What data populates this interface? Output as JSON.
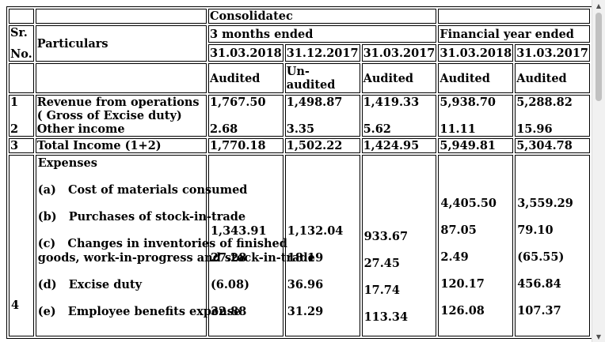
{
  "header": {
    "consolidated": "Consolidatec",
    "sr": "Sr.",
    "no": "No.",
    "particulars": "Particulars",
    "three_months": "3 months ended",
    "financial_year": "Financial year ended",
    "dates": [
      "31.03.2018",
      "31.12.2017",
      "31.03.2017",
      "31.03.2018",
      "31.03.2017"
    ],
    "status": [
      "Audited",
      "Un-audited",
      "Audited",
      "Audited",
      "Audited"
    ]
  },
  "rows": {
    "r1": {
      "sr": "1",
      "label": "Revenue from operations ( Gross of Excise duty)",
      "values": [
        "1,767.50",
        "1,498.87",
        "1,419.33",
        "5,938.70",
        "5,288.82"
      ]
    },
    "r2": {
      "sr": "2",
      "label": "Other income",
      "values": [
        "2.68",
        "3.35",
        "5.62",
        "11.11",
        "15.96"
      ]
    },
    "r3": {
      "sr": "3",
      "label": "Total Income (1+2)",
      "values": [
        "1,770.18",
        "1,502.22",
        "1,424.95",
        "5,949.81",
        "5,304.78"
      ]
    }
  },
  "expenses": {
    "sr": "4",
    "heading": "Expenses",
    "items": [
      "(a)   Cost of materials consumed",
      "(b)   Purchases of stock-in-trade",
      "(c)   Changes in inventories of finished",
      "goods, work-in-progress and stock-in-trade",
      "(d)   Excise duty",
      "(e)   Employee benefits expense"
    ],
    "col1": [
      "1,343.91",
      "27.28",
      "(6.08)",
      "32.88"
    ],
    "col2": [
      "1,132.04",
      "18.19",
      "36.96",
      "31.29"
    ],
    "col3": [
      "933.67",
      "27.45",
      "17.74",
      "113.34"
    ],
    "col4": [
      "4,405.50",
      "87.05",
      "2.49",
      "120.17",
      "126.08"
    ],
    "col5": [
      "3,559.29",
      "79.10",
      "(65.55)",
      "456.84",
      "107.37"
    ]
  }
}
